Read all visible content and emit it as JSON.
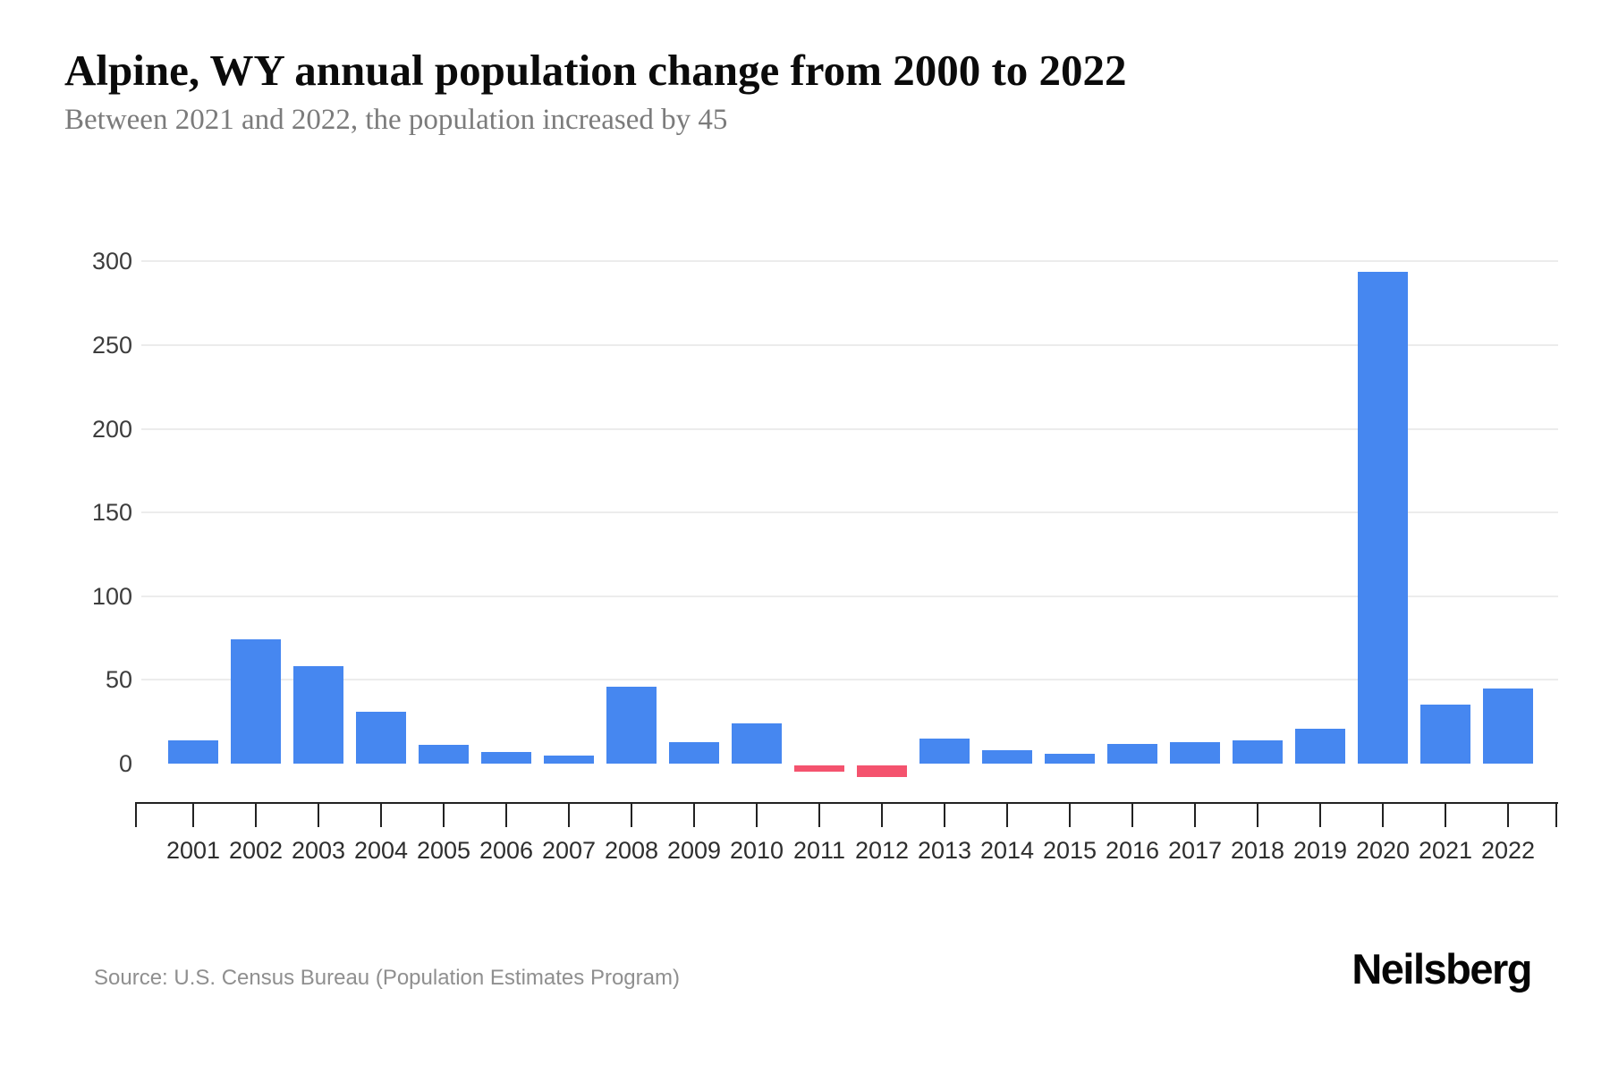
{
  "header": {
    "title": "Alpine, WY annual population change from 2000 to 2022",
    "subtitle": "Between 2021 and 2022, the population increased by 45"
  },
  "chart_data": {
    "type": "bar",
    "title": "Alpine, WY annual population change from 2000 to 2022",
    "subtitle": "Between 2021 and 2022, the population increased by 45",
    "xlabel": "",
    "ylabel": "",
    "categories": [
      "2001",
      "2002",
      "2003",
      "2004",
      "2005",
      "2006",
      "2007",
      "2008",
      "2009",
      "2010",
      "2011",
      "2012",
      "2013",
      "2014",
      "2015",
      "2016",
      "2017",
      "2018",
      "2019",
      "2020",
      "2021",
      "2022"
    ],
    "values": [
      14,
      74,
      58,
      31,
      11,
      7,
      5,
      46,
      13,
      24,
      -4,
      -7,
      15,
      8,
      6,
      12,
      13,
      14,
      21,
      294,
      35,
      45
    ],
    "yticks": [
      0,
      50,
      100,
      150,
      200,
      250,
      300
    ],
    "ylim": [
      -25,
      310
    ],
    "grid": true,
    "legend": false,
    "positive_color": "#4687f0",
    "negative_color": "#f4536e",
    "gridline_color": "#ececec",
    "axis_color": "#222222"
  },
  "footer": {
    "source": "Source: U.S. Census Bureau (Population Estimates Program)",
    "brand": "Neilsberg"
  }
}
